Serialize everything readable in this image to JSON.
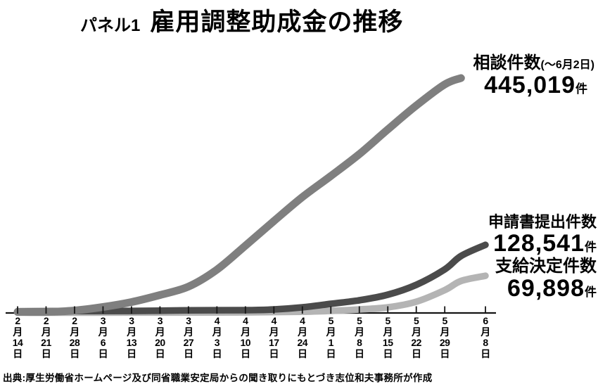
{
  "page": {
    "title_prefix": "パネル1",
    "title": "雇用調整助成金の推移",
    "source": "出典:厚生労働省ホームページ及び同省職業安定局からの聞き取りにもとづき志位和夫事務所が作成"
  },
  "chart_data": {
    "type": "line",
    "title": "雇用調整助成金の推移",
    "xlabel": "",
    "ylabel": "",
    "ylim": [
      0,
      445019
    ],
    "grid": false,
    "legend_position": "inline-right",
    "x_axis": {
      "month_glyph": "月",
      "day_glyph": "日",
      "ticks": [
        {
          "day": 0,
          "m": "2",
          "d": "14"
        },
        {
          "day": 7,
          "m": "2",
          "d": "21"
        },
        {
          "day": 14,
          "m": "2",
          "d": "28"
        },
        {
          "day": 21,
          "m": "3",
          "d": "6"
        },
        {
          "day": 28,
          "m": "3",
          "d": "13"
        },
        {
          "day": 35,
          "m": "3",
          "d": "20"
        },
        {
          "day": 42,
          "m": "3",
          "d": "27"
        },
        {
          "day": 49,
          "m": "4",
          "d": "3"
        },
        {
          "day": 56,
          "m": "4",
          "d": "10"
        },
        {
          "day": 63,
          "m": "4",
          "d": "17"
        },
        {
          "day": 70,
          "m": "4",
          "d": "24"
        },
        {
          "day": 77,
          "m": "5",
          "d": "1"
        },
        {
          "day": 84,
          "m": "5",
          "d": "8"
        },
        {
          "day": 91,
          "m": "5",
          "d": "15"
        },
        {
          "day": 98,
          "m": "5",
          "d": "22"
        },
        {
          "day": 105,
          "m": "5",
          "d": "29"
        },
        {
          "day": 115,
          "m": "6",
          "d": "8"
        }
      ]
    },
    "series": [
      {
        "name": "相談件数",
        "color": "#7f7f7f",
        "width": 11,
        "points": [
          [
            0,
            1300
          ],
          [
            7,
            1300
          ],
          [
            14,
            4000
          ],
          [
            21,
            10700
          ],
          [
            28,
            20000
          ],
          [
            35,
            33400
          ],
          [
            42,
            49400
          ],
          [
            49,
            81500
          ],
          [
            56,
            127000
          ],
          [
            63,
            173700
          ],
          [
            70,
            219200
          ],
          [
            77,
            259300
          ],
          [
            84,
            300700
          ],
          [
            91,
            347500
          ],
          [
            98,
            392900
          ],
          [
            105,
            433000
          ],
          [
            109,
            445019
          ]
        ]
      },
      {
        "name": "申請書提出件数",
        "color": "#4b4b4b",
        "width": 9.5,
        "points": [
          [
            0,
            2500
          ],
          [
            14,
            3000
          ],
          [
            28,
            3200
          ],
          [
            42,
            4300
          ],
          [
            56,
            4700
          ],
          [
            63,
            6000
          ],
          [
            70,
            10000
          ],
          [
            77,
            16700
          ],
          [
            84,
            23400
          ],
          [
            91,
            34000
          ],
          [
            98,
            52700
          ],
          [
            105,
            82100
          ],
          [
            109,
            107400
          ],
          [
            115,
            128541
          ]
        ]
      },
      {
        "name": "支給決定件数",
        "color": "#b4b4b4",
        "width": 9.5,
        "points": [
          [
            0,
            0
          ],
          [
            28,
            100
          ],
          [
            56,
            500
          ],
          [
            70,
            1800
          ],
          [
            77,
            3300
          ],
          [
            84,
            6000
          ],
          [
            91,
            10000
          ],
          [
            98,
            20700
          ],
          [
            105,
            42700
          ],
          [
            109,
            60000
          ],
          [
            115,
            69898
          ]
        ]
      }
    ],
    "annotations": [
      {
        "series": "相談件数",
        "label": "相談件数",
        "paren": "(〜6月2日)",
        "value": "445,019",
        "unit": "件"
      },
      {
        "series": "申請書提出件数",
        "label": "申請書提出件数",
        "value": "128,541",
        "unit": "件"
      },
      {
        "series": "支給決定件数",
        "label": "支給決定件数",
        "value": "69,898",
        "unit": "件"
      }
    ]
  }
}
